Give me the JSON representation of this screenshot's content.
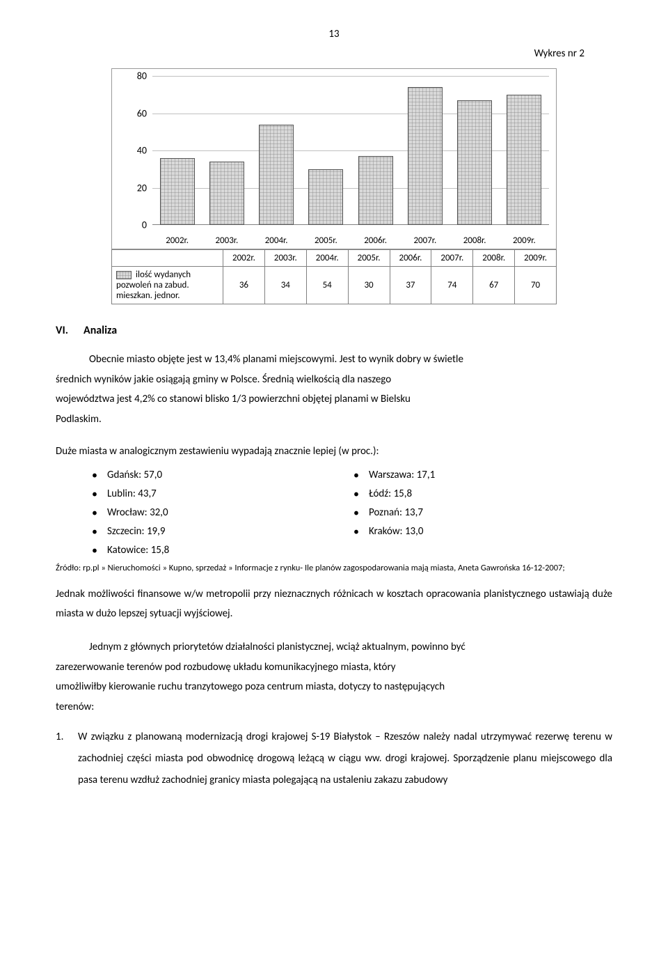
{
  "page_number": "13",
  "chart": {
    "title": "Wykres nr 2",
    "type": "bar",
    "categories": [
      "2002r.",
      "2003r.",
      "2004r.",
      "2005r.",
      "2006r.",
      "2007r.",
      "2008r.",
      "2009r."
    ],
    "values": [
      36,
      34,
      54,
      30,
      37,
      74,
      67,
      70
    ],
    "ylim": [
      0,
      80
    ],
    "ytick_step": 20,
    "yticks": [
      "0",
      "20",
      "40",
      "60",
      "80"
    ],
    "bar_fill": "#d9d9d9",
    "bar_border": "#555555",
    "grid_color": "#bfbfbf",
    "background": "#ffffff",
    "legend_label": "ilość wydanych pozwoleń na zabud. mieszkan. jednor."
  },
  "section": {
    "num": "VI.",
    "title": "Analiza"
  },
  "para1_a": "Obecnie miasto objęte jest w 13,4% planami miejscowymi. Jest to wynik dobry w świetle",
  "para1_b": "średnich wyników  jakie  osiągają gminy w Polsce. Średnią wielkością dla naszego",
  "para1_c": "województwa jest 4,2% co stanowi blisko 1/3 powierzchni objętej planami w Bielsku",
  "para1_d": "Podlaskim.",
  "para2": "Duże miasta w analogicznym zestawieniu wypadają znacznie lepiej (w proc.):",
  "cities_left": [
    "Gdańsk: 57,0",
    "Lublin: 43,7",
    "Wrocław: 32,0",
    "Szczecin: 19,9",
    "Katowice: 15,8"
  ],
  "cities_right": [
    "Warszawa: 17,1",
    "Łódź: 15,8",
    "Poznań: 13,7",
    "Kraków: 13,0"
  ],
  "source": "Źródło: rp.pl » Nieruchomości » Kupno, sprzedaż » Informacje z rynku- Ile planów zagospodarowania mają miasta, Aneta Gawrońska 16-12-2007;",
  "para3": "Jednak  możliwości  finansowe  w/w  metropolii  przy  nieznacznych  różnicach  w  kosztach opracowania planistycznego ustawiają duże miasta w dużo lepszej sytuacji wyjściowej.",
  "para4_a": "Jednym z głównych priorytetów działalności planistycznej, wciąż aktualnym, powinno być",
  "para4_b": "zarezerwowanie   terenów   pod   rozbudowę   układu   komunikacyjnego   miasta,   który",
  "para4_c": "umożliwiłby kierowanie ruchu tranzytowego poza centrum miasta, dotyczy to następujących",
  "para4_d": "terenów:",
  "list1": "W związku z planowaną modernizacją drogi krajowej S-19 Białystok – Rzeszów należy nadal utrzymywać rezerwę terenu w zachodniej części miasta pod obwodnicę drogową leżącą  w  ciągu  ww.  drogi  krajowej.  Sporządzenie  planu  miejscowego  dla  pasa  terenu wzdłuż   zachodniej   granicy   miasta   polegającą   na   ustaleniu   zakazu   zabudowy"
}
